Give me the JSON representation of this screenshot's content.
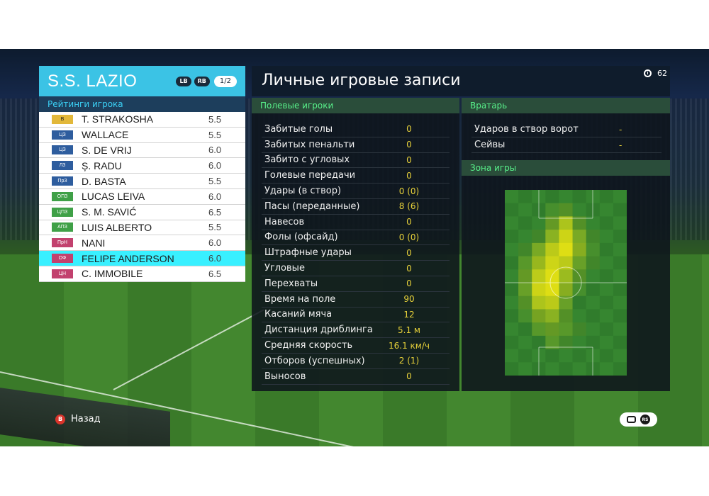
{
  "team": {
    "name": "S.S. LAZIO",
    "lb_label": "LB",
    "rb_label": "RB",
    "page": "1/2",
    "ratings_title": "Рейтинги игрока"
  },
  "players": [
    {
      "pos": "В",
      "pos_color": "#e2b83a",
      "pos_text": "#1a1a1a",
      "name": "T. STRAKOSHA",
      "rating": "5.5"
    },
    {
      "pos": "ЦЗ",
      "pos_color": "#2e5d9e",
      "pos_text": "#ffffff",
      "name": "WALLACE",
      "rating": "5.5"
    },
    {
      "pos": "ЦЗ",
      "pos_color": "#2e5d9e",
      "pos_text": "#ffffff",
      "name": "S. DE VRIJ",
      "rating": "6.0"
    },
    {
      "pos": "ЛЗ",
      "pos_color": "#2e5d9e",
      "pos_text": "#ffffff",
      "name": "Ș. RADU",
      "rating": "6.0"
    },
    {
      "pos": "ПрЗ",
      "pos_color": "#2e5d9e",
      "pos_text": "#ffffff",
      "name": "D. BASTA",
      "rating": "5.5"
    },
    {
      "pos": "ОПЗ",
      "pos_color": "#3fa047",
      "pos_text": "#ffffff",
      "name": "LUCAS LEIVA",
      "rating": "6.0"
    },
    {
      "pos": "ЦПЗ",
      "pos_color": "#3fa047",
      "pos_text": "#ffffff",
      "name": "S. M. SAVIĆ",
      "rating": "6.5"
    },
    {
      "pos": "АПЗ",
      "pos_color": "#3fa047",
      "pos_text": "#ffffff",
      "name": "LUIS ALBERTO",
      "rating": "5.5"
    },
    {
      "pos": "ПрН",
      "pos_color": "#c2416e",
      "pos_text": "#ffffff",
      "name": "NANI",
      "rating": "6.0"
    },
    {
      "pos": "ОФ",
      "pos_color": "#c2416e",
      "pos_text": "#ffffff",
      "name": "FELIPE ANDERSON",
      "rating": "6.0",
      "selected": true
    },
    {
      "pos": "ЦН",
      "pos_color": "#c2416e",
      "pos_text": "#ffffff",
      "name": "C. IMMOBILE",
      "rating": "6.5"
    }
  ],
  "records": {
    "title": "Личные игровые записи",
    "timer": "62",
    "field_title": "Полевые игроки",
    "gk_title": "Вратарь",
    "zone_title": "Зона игры"
  },
  "field_stats": [
    {
      "label": "Забитые голы",
      "value": "0"
    },
    {
      "label": "Забитых пенальти",
      "value": "0"
    },
    {
      "label": "Забито с угловых",
      "value": "0"
    },
    {
      "label": "Голевые передачи",
      "value": "0"
    },
    {
      "label": "Удары (в створ)",
      "value": "0 (0)"
    },
    {
      "label": "Пасы (переданные)",
      "value": "8 (6)"
    },
    {
      "label": "Навесов",
      "value": "0"
    },
    {
      "label": "Фолы (офсайд)",
      "value": "0 (0)"
    },
    {
      "label": "Штрафные удары",
      "value": "0"
    },
    {
      "label": "Угловые",
      "value": "0"
    },
    {
      "label": "Перехваты",
      "value": "0"
    },
    {
      "label": "Время на поле",
      "value": "90"
    },
    {
      "label": "Касаний мяча",
      "value": "12"
    },
    {
      "label": "Дистанция дриблинга",
      "value": "5.1 м"
    },
    {
      "label": "Средняя скорость",
      "value": "16.1 км/ч"
    },
    {
      "label": "Отборов (успешных)",
      "value": "2 (1)"
    },
    {
      "label": "Выносов",
      "value": "0"
    }
  ],
  "gk_stats": [
    {
      "label": "Ударов в створ ворот",
      "value": "-"
    },
    {
      "label": "Сейвы",
      "value": "-"
    }
  ],
  "heatmap": {
    "cols": 9,
    "rows": 14,
    "cells": [
      [
        0,
        0,
        0,
        0,
        0,
        0,
        0,
        0,
        0
      ],
      [
        0,
        0,
        0,
        0.1,
        0.2,
        0,
        0,
        0,
        0
      ],
      [
        0,
        0,
        0,
        0.3,
        0.7,
        0.2,
        0,
        0,
        0
      ],
      [
        0,
        0,
        0.1,
        0.5,
        0.9,
        0.4,
        0.1,
        0,
        0
      ],
      [
        0,
        0.1,
        0.4,
        0.8,
        1,
        0.5,
        0.1,
        0,
        0
      ],
      [
        0,
        0.2,
        0.6,
        0.9,
        0.8,
        0.3,
        0.1,
        0,
        0
      ],
      [
        0,
        0.3,
        0.8,
        1,
        0.6,
        0.2,
        0,
        0,
        0
      ],
      [
        0,
        0.3,
        0.9,
        1,
        0.5,
        0.1,
        0,
        0,
        0
      ],
      [
        0,
        0.2,
        0.7,
        0.8,
        0.3,
        0,
        0,
        0,
        0
      ],
      [
        0,
        0.1,
        0.4,
        0.5,
        0.2,
        0,
        0,
        0,
        0
      ],
      [
        0,
        0,
        0.2,
        0.3,
        0.2,
        0.1,
        0,
        0,
        0
      ],
      [
        0,
        0,
        0,
        0.2,
        0.1,
        0,
        0,
        0,
        0
      ],
      [
        0,
        0,
        0,
        0,
        0,
        0,
        0,
        0,
        0
      ],
      [
        0,
        0,
        0,
        0,
        0,
        0,
        0,
        0,
        0
      ]
    ]
  },
  "footer": {
    "back_label": "Назад",
    "back_key": "B",
    "rs_label": "RS"
  }
}
